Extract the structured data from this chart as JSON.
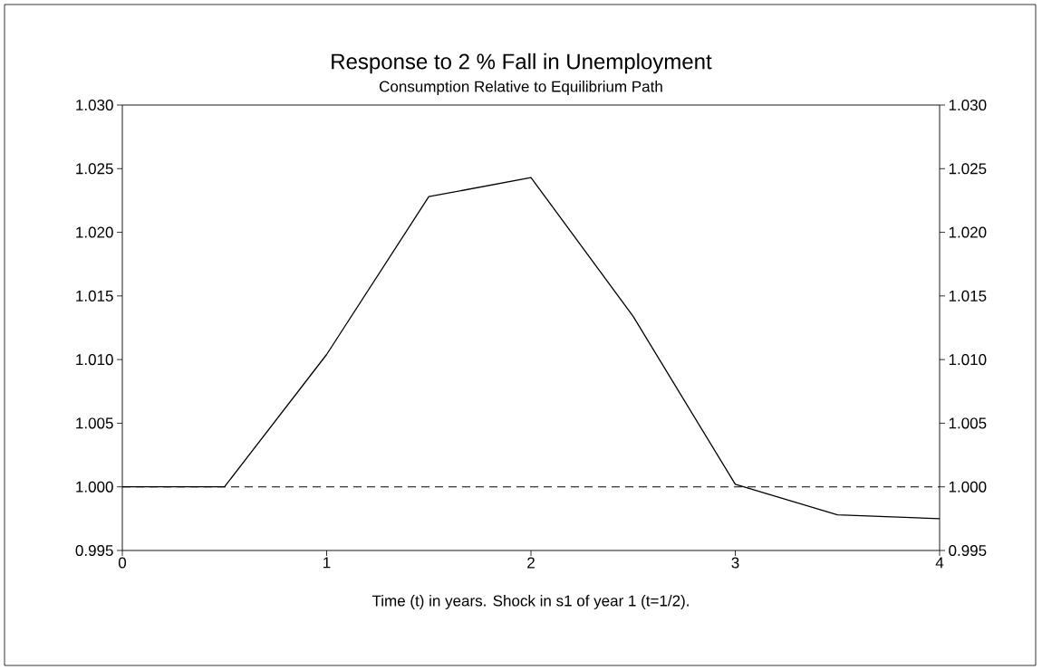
{
  "chart_data": {
    "type": "line",
    "title": "Response to 2 % Fall in Unemployment",
    "subtitle": "Consumption Relative to Equilibrium Path",
    "xlabel": "Time (t) in years. Shock in s1 of year 1 (t=1/2).",
    "series": [
      {
        "color": "#000000",
        "line_style": "solid",
        "x": [
          0,
          0.5,
          1,
          1.5,
          2,
          2.5,
          3,
          3.5,
          4
        ],
        "values": [
          1.0,
          1.0,
          1.0104,
          1.0228,
          1.0243,
          1.0134,
          1.0002,
          0.9978,
          0.9975
        ]
      }
    ],
    "xlim": [
      0,
      4
    ],
    "xticks": [
      0,
      1,
      2,
      3,
      4
    ],
    "ylim": [
      0.995,
      1.03
    ],
    "yticks": [
      {
        "value": 0.995,
        "label": "0.995"
      },
      {
        "value": 1.0,
        "label": "1.000"
      },
      {
        "value": 1.005,
        "label": "1.005"
      },
      {
        "value": 1.01,
        "label": "1.010"
      },
      {
        "value": 1.015,
        "label": "1.015"
      },
      {
        "value": 1.02,
        "label": "1.020"
      },
      {
        "value": 1.025,
        "label": "1.025"
      },
      {
        "value": 1.03,
        "label": "1.030"
      }
    ],
    "y2lim": [
      0.995,
      1.03
    ],
    "y2ticks": [
      {
        "value": 0.995,
        "label": "0.995"
      },
      {
        "value": 1.0,
        "label": "1.000"
      },
      {
        "value": 1.005,
        "label": "1.005"
      },
      {
        "value": 1.01,
        "label": "1.010"
      },
      {
        "value": 1.015,
        "label": "1.015"
      },
      {
        "value": 1.02,
        "label": "1.020"
      },
      {
        "value": 1.025,
        "label": "1.025"
      },
      {
        "value": 1.03,
        "label": "1.030"
      }
    ],
    "ref_lines": [
      {
        "axis": "y",
        "value": 1.0,
        "color": "#000000",
        "line_style": "dashed"
      }
    ],
    "grid": false
  }
}
